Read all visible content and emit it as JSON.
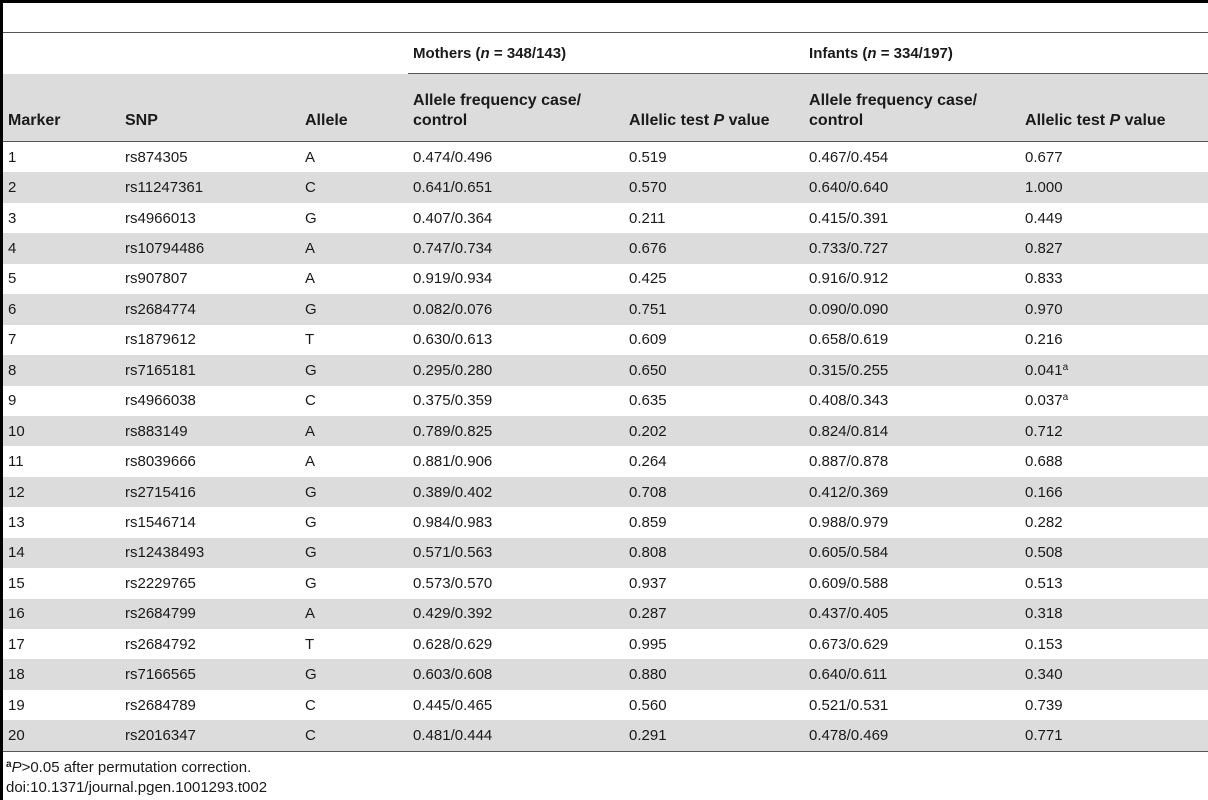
{
  "table": {
    "groups": {
      "mothers": {
        "label": "Mothers",
        "n_label": "n",
        "n_value": "348/143"
      },
      "infants": {
        "label": "Infants",
        "n_label": "n",
        "n_value": "334/197"
      }
    },
    "columns": {
      "marker": "Marker",
      "snp": "SNP",
      "allele": "Allele",
      "freq": "Allele frequency case/ control",
      "p_prefix": "Allelic test",
      "p_italic": "P",
      "p_suffix": "value"
    },
    "rows": [
      {
        "marker": "1",
        "snp": "rs874305",
        "allele": "A",
        "m_freq": "0.474/0.496",
        "m_p": "0.519",
        "i_freq": "0.467/0.454",
        "i_p": "0.677",
        "i_p_sup": ""
      },
      {
        "marker": "2",
        "snp": "rs11247361",
        "allele": "C",
        "m_freq": "0.641/0.651",
        "m_p": "0.570",
        "i_freq": "0.640/0.640",
        "i_p": "1.000",
        "i_p_sup": ""
      },
      {
        "marker": "3",
        "snp": "rs4966013",
        "allele": "G",
        "m_freq": "0.407/0.364",
        "m_p": "0.211",
        "i_freq": "0.415/0.391",
        "i_p": "0.449",
        "i_p_sup": ""
      },
      {
        "marker": "4",
        "snp": "rs10794486",
        "allele": "A",
        "m_freq": "0.747/0.734",
        "m_p": "0.676",
        "i_freq": "0.733/0.727",
        "i_p": "0.827",
        "i_p_sup": ""
      },
      {
        "marker": "5",
        "snp": "rs907807",
        "allele": "A",
        "m_freq": "0.919/0.934",
        "m_p": "0.425",
        "i_freq": "0.916/0.912",
        "i_p": "0.833",
        "i_p_sup": ""
      },
      {
        "marker": "6",
        "snp": "rs2684774",
        "allele": "G",
        "m_freq": "0.082/0.076",
        "m_p": "0.751",
        "i_freq": "0.090/0.090",
        "i_p": "0.970",
        "i_p_sup": ""
      },
      {
        "marker": "7",
        "snp": "rs1879612",
        "allele": "T",
        "m_freq": "0.630/0.613",
        "m_p": "0.609",
        "i_freq": "0.658/0.619",
        "i_p": "0.216",
        "i_p_sup": ""
      },
      {
        "marker": "8",
        "snp": "rs7165181",
        "allele": "G",
        "m_freq": "0.295/0.280",
        "m_p": "0.650",
        "i_freq": "0.315/0.255",
        "i_p": "0.041",
        "i_p_sup": "a"
      },
      {
        "marker": "9",
        "snp": "rs4966038",
        "allele": "C",
        "m_freq": "0.375/0.359",
        "m_p": "0.635",
        "i_freq": "0.408/0.343",
        "i_p": "0.037",
        "i_p_sup": "a"
      },
      {
        "marker": "10",
        "snp": "rs883149",
        "allele": "A",
        "m_freq": "0.789/0.825",
        "m_p": "0.202",
        "i_freq": "0.824/0.814",
        "i_p": "0.712",
        "i_p_sup": ""
      },
      {
        "marker": "11",
        "snp": "rs8039666",
        "allele": "A",
        "m_freq": "0.881/0.906",
        "m_p": "0.264",
        "i_freq": "0.887/0.878",
        "i_p": "0.688",
        "i_p_sup": ""
      },
      {
        "marker": "12",
        "snp": "rs2715416",
        "allele": "G",
        "m_freq": "0.389/0.402",
        "m_p": "0.708",
        "i_freq": "0.412/0.369",
        "i_p": "0.166",
        "i_p_sup": ""
      },
      {
        "marker": "13",
        "snp": "rs1546714",
        "allele": "G",
        "m_freq": "0.984/0.983",
        "m_p": "0.859",
        "i_freq": "0.988/0.979",
        "i_p": "0.282",
        "i_p_sup": ""
      },
      {
        "marker": "14",
        "snp": "rs12438493",
        "allele": "G",
        "m_freq": "0.571/0.563",
        "m_p": "0.808",
        "i_freq": "0.605/0.584",
        "i_p": "0.508",
        "i_p_sup": ""
      },
      {
        "marker": "15",
        "snp": "rs2229765",
        "allele": "G",
        "m_freq": "0.573/0.570",
        "m_p": "0.937",
        "i_freq": "0.609/0.588",
        "i_p": "0.513",
        "i_p_sup": ""
      },
      {
        "marker": "16",
        "snp": "rs2684799",
        "allele": "A",
        "m_freq": "0.429/0.392",
        "m_p": "0.287",
        "i_freq": "0.437/0.405",
        "i_p": "0.318",
        "i_p_sup": ""
      },
      {
        "marker": "17",
        "snp": "rs2684792",
        "allele": "T",
        "m_freq": "0.628/0.629",
        "m_p": "0.995",
        "i_freq": "0.673/0.629",
        "i_p": "0.153",
        "i_p_sup": ""
      },
      {
        "marker": "18",
        "snp": "rs7166565",
        "allele": "G",
        "m_freq": "0.603/0.608",
        "m_p": "0.880",
        "i_freq": "0.640/0.611",
        "i_p": "0.340",
        "i_p_sup": ""
      },
      {
        "marker": "19",
        "snp": "rs2684789",
        "allele": "C",
        "m_freq": "0.445/0.465",
        "m_p": "0.560",
        "i_freq": "0.521/0.531",
        "i_p": "0.739",
        "i_p_sup": ""
      },
      {
        "marker": "20",
        "snp": "rs2016347",
        "allele": "C",
        "m_freq": "0.481/0.444",
        "m_p": "0.291",
        "i_freq": "0.478/0.469",
        "i_p": "0.771",
        "i_p_sup": ""
      }
    ]
  },
  "footnote": {
    "mark": "a",
    "italic": "P",
    "text": ">0.05 after permutation correction.",
    "doi": "doi:10.1371/journal.pgen.1001293.t002"
  }
}
